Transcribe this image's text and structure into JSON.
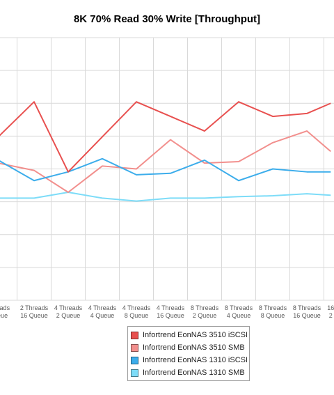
{
  "chart_data": {
    "type": "line",
    "title": "8K 70% Read 30% Write [Throughput]",
    "xlabel": "",
    "ylabel": "",
    "ylim": [
      0,
      9
    ],
    "grid": true,
    "legend_position": "bottom",
    "categories": [
      [
        "Threads",
        "Queue"
      ],
      [
        "2 Threads",
        "16 Queue"
      ],
      [
        "4 Threads",
        "2 Queue"
      ],
      [
        "4 Threads",
        "4 Queue"
      ],
      [
        "4 Threads",
        "8 Queue"
      ],
      [
        "4 Threads",
        "16 Queue"
      ],
      [
        "8 Threads",
        "2 Queue"
      ],
      [
        "8 Threads",
        "4 Queue"
      ],
      [
        "8 Threads",
        "8 Queue"
      ],
      [
        "8 Threads",
        "16 Queue"
      ],
      [
        "16",
        "2"
      ]
    ],
    "x": [
      -0.05,
      1,
      2,
      3,
      4,
      5,
      6,
      7,
      8,
      9,
      9.7
    ],
    "series": [
      {
        "name": "Infortrend EonNAS 3510 iSCSI",
        "color": "#e8504f",
        "values": [
          5.6,
          6.8,
          4.4,
          5.6,
          6.8,
          6.3,
          5.8,
          6.8,
          6.3,
          6.4,
          6.75
        ]
      },
      {
        "name": "Infortrend EonNAS 3510 SMB",
        "color": "#f28f8d",
        "values": [
          4.7,
          4.45,
          3.7,
          4.6,
          4.5,
          5.5,
          4.7,
          4.75,
          5.4,
          5.8,
          5.1
        ]
      },
      {
        "name": "Infortrend EonNAS 1310 iSCSI",
        "color": "#3cadeb",
        "values": [
          4.8,
          4.1,
          4.4,
          4.85,
          4.3,
          4.35,
          4.8,
          4.1,
          4.5,
          4.4,
          4.4
        ]
      },
      {
        "name": "Infortrend EonNAS 1310 SMB",
        "color": "#7ddcf8",
        "values": [
          3.5,
          3.5,
          3.7,
          3.5,
          3.4,
          3.5,
          3.5,
          3.55,
          3.58,
          3.65,
          3.6
        ]
      }
    ]
  }
}
